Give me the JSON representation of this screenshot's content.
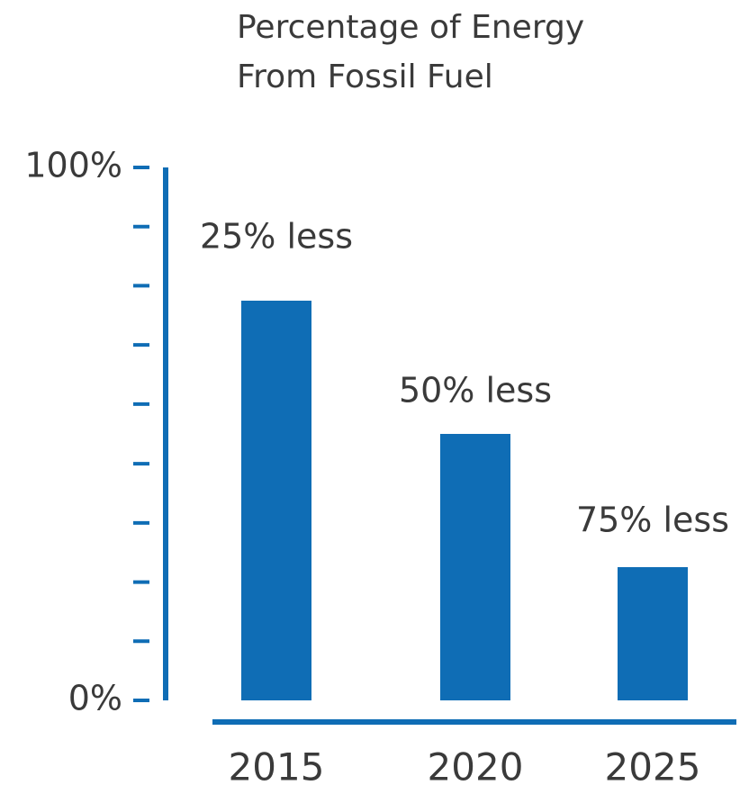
{
  "chart_data": {
    "type": "bar",
    "title": [
      "Percentage of Energy",
      "From Fossil Fuel"
    ],
    "categories": [
      "2015",
      "2020",
      "2025"
    ],
    "values": [
      75,
      50,
      25
    ],
    "annotations": [
      "25% less",
      "50% less",
      "75% less"
    ],
    "color": "#0f6db5",
    "ylim": [
      0,
      100
    ],
    "yticks": [
      {
        "value": 0,
        "label": "0%"
      },
      {
        "value": 100,
        "label": "100%"
      }
    ],
    "yminor_ticks": [
      11.1,
      22.2,
      33.3,
      44.4,
      55.6,
      66.7,
      77.8,
      88.9
    ]
  }
}
